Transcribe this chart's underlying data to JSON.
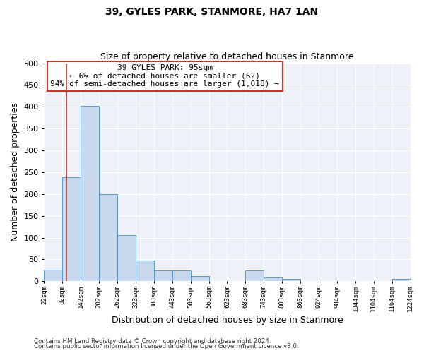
{
  "title": "39, GYLES PARK, STANMORE, HA7 1AN",
  "subtitle": "Size of property relative to detached houses in Stanmore",
  "xlabel": "Distribution of detached houses by size in Stanmore",
  "ylabel": "Number of detached properties",
  "bin_edges": [
    22,
    82,
    142,
    202,
    262,
    323,
    383,
    443,
    503,
    563,
    623,
    683,
    743,
    803,
    863,
    924,
    984,
    1044,
    1104,
    1164,
    1224
  ],
  "bin_counts": [
    26,
    238,
    402,
    199,
    105,
    48,
    25,
    25,
    12,
    0,
    0,
    25,
    9,
    5,
    0,
    0,
    0,
    0,
    0,
    5
  ],
  "bar_facecolor": "#c8d9ee",
  "bar_edgecolor": "#5b9bd5",
  "vline_x": 95,
  "vline_color": "#c0392b",
  "vline_lw": 1.2,
  "annotation_text": "39 GYLES PARK: 95sqm\n← 6% of detached houses are smaller (62)\n94% of semi-detached houses are larger (1,018) →",
  "annotation_box_color": "#c0392b",
  "ylim": [
    0,
    500
  ],
  "xlim": [
    22,
    1224
  ],
  "yticks": [
    0,
    50,
    100,
    150,
    200,
    250,
    300,
    350,
    400,
    450,
    500
  ],
  "xtick_labels": [
    "22sqm",
    "82sqm",
    "142sqm",
    "202sqm",
    "262sqm",
    "323sqm",
    "383sqm",
    "443sqm",
    "503sqm",
    "563sqm",
    "623sqm",
    "683sqm",
    "743sqm",
    "803sqm",
    "863sqm",
    "924sqm",
    "984sqm",
    "1044sqm",
    "1104sqm",
    "1164sqm",
    "1224sqm"
  ],
  "bg_color": "#eef2f8",
  "grid_color": "#ffffff",
  "footer1": "Contains HM Land Registry data © Crown copyright and database right 2024.",
  "footer2": "Contains public sector information licensed under the Open Government Licence v3.0."
}
